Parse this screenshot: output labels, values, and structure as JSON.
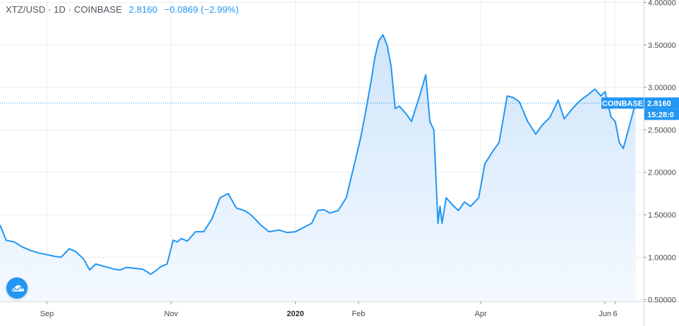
{
  "header": {
    "symbol": "XTZ/USD · 1D · COINBASE",
    "last": "2.8160",
    "change": "−0.0869 (−2.99%)"
  },
  "colors": {
    "line": "#2196f3",
    "fill_top": "#cfe5fb",
    "fill_bottom": "#f4f9ff",
    "grid": "#ececec",
    "price_line": "#2196f3"
  },
  "icons": {
    "logo": "tradingview-cloud-icon"
  },
  "chart_data": {
    "type": "area",
    "y_axis": {
      "ticks": [
        0.5,
        1.0,
        1.5,
        2.0,
        2.5,
        3.0,
        3.5,
        4.0
      ],
      "tick_labels": [
        "0.50000",
        "1.00000",
        "1.50000",
        "2.00000",
        "2.50000",
        "3.00000",
        "3.50000",
        "4.00000"
      ],
      "ylim": [
        0.48,
        4.03
      ],
      "position": "right"
    },
    "x_axis": {
      "xlim": [
        "2019-08-09",
        "2020-06-20"
      ],
      "ticks": [
        {
          "date": "2019-09-01",
          "label": "Sep",
          "bold": false
        },
        {
          "date": "2019-11-01",
          "label": "Nov",
          "bold": false
        },
        {
          "date": "2020-01-01",
          "label": "2020",
          "bold": true
        },
        {
          "date": "2020-02-01",
          "label": "Feb",
          "bold": false
        },
        {
          "date": "2020-04-01",
          "label": "Apr",
          "bold": false
        },
        {
          "date": "2020-06-01",
          "label": "Jun",
          "bold": false
        },
        {
          "date": "2020-06-06",
          "label": "6",
          "bold": false
        }
      ]
    },
    "grid": true,
    "last_price": {
      "value": 2.816,
      "exchange_label": "COINBASE",
      "value_label": "2.8160",
      "countdown": "15:28:0"
    },
    "series": [
      {
        "x": [
          "2019-08-09",
          "2019-08-12",
          "2019-08-16",
          "2019-08-20",
          "2019-08-24",
          "2019-08-28",
          "2019-09-01",
          "2019-09-05",
          "2019-09-08",
          "2019-09-12",
          "2019-09-15",
          "2019-09-19",
          "2019-09-22",
          "2019-09-25",
          "2019-09-28",
          "2019-10-01",
          "2019-10-04",
          "2019-10-07",
          "2019-10-10",
          "2019-10-14",
          "2019-10-18",
          "2019-10-22",
          "2019-10-25",
          "2019-10-27",
          "2019-10-30",
          "2019-11-02",
          "2019-11-04",
          "2019-11-06",
          "2019-11-09",
          "2019-11-13",
          "2019-11-17",
          "2019-11-21",
          "2019-11-25",
          "2019-11-29",
          "2019-12-03",
          "2019-12-07",
          "2019-12-09",
          "2019-12-11",
          "2019-12-15",
          "2019-12-19",
          "2019-12-24",
          "2019-12-28",
          "2020-01-01",
          "2020-01-05",
          "2020-01-09",
          "2020-01-12",
          "2020-01-15",
          "2020-01-18",
          "2020-01-22",
          "2020-01-26",
          "2020-01-30",
          "2020-02-02",
          "2020-02-04",
          "2020-02-07",
          "2020-02-09",
          "2020-02-11",
          "2020-02-13",
          "2020-02-15",
          "2020-02-17",
          "2020-02-19",
          "2020-02-21",
          "2020-02-24",
          "2020-02-27",
          "2020-03-02",
          "2020-03-05",
          "2020-03-07",
          "2020-03-09",
          "2020-03-11",
          "2020-03-12",
          "2020-03-13",
          "2020-03-15",
          "2020-03-18",
          "2020-03-21",
          "2020-03-24",
          "2020-03-27",
          "2020-03-31",
          "2020-04-03",
          "2020-04-07",
          "2020-04-10",
          "2020-04-14",
          "2020-04-17",
          "2020-04-20",
          "2020-04-24",
          "2020-04-28",
          "2020-05-01",
          "2020-05-05",
          "2020-05-09",
          "2020-05-12",
          "2020-05-16",
          "2020-05-20",
          "2020-05-24",
          "2020-05-27",
          "2020-05-30",
          "2020-06-01",
          "2020-06-04",
          "2020-06-06",
          "2020-06-08",
          "2020-06-10",
          "2020-06-13",
          "2020-06-16"
        ],
        "y": [
          1.38,
          1.2,
          1.18,
          1.12,
          1.08,
          1.05,
          1.03,
          1.01,
          1.0,
          1.1,
          1.07,
          0.98,
          0.85,
          0.92,
          0.9,
          0.88,
          0.86,
          0.85,
          0.88,
          0.87,
          0.86,
          0.8,
          0.85,
          0.89,
          0.92,
          1.2,
          1.18,
          1.22,
          1.19,
          1.3,
          1.3,
          1.45,
          1.7,
          1.75,
          1.58,
          1.55,
          1.52,
          1.48,
          1.38,
          1.3,
          1.32,
          1.29,
          1.3,
          1.35,
          1.4,
          1.55,
          1.56,
          1.52,
          1.55,
          1.7,
          2.1,
          2.4,
          2.65,
          3.05,
          3.35,
          3.55,
          3.62,
          3.5,
          3.25,
          2.75,
          2.78,
          2.7,
          2.6,
          2.9,
          3.15,
          2.6,
          2.5,
          1.4,
          1.6,
          1.4,
          1.7,
          1.62,
          1.55,
          1.65,
          1.6,
          1.7,
          2.1,
          2.25,
          2.35,
          2.9,
          2.88,
          2.83,
          2.6,
          2.45,
          2.55,
          2.65,
          2.85,
          2.63,
          2.75,
          2.85,
          2.92,
          2.98,
          2.9,
          2.95,
          2.65,
          2.6,
          2.35,
          2.28,
          2.55,
          2.82
        ]
      }
    ]
  }
}
